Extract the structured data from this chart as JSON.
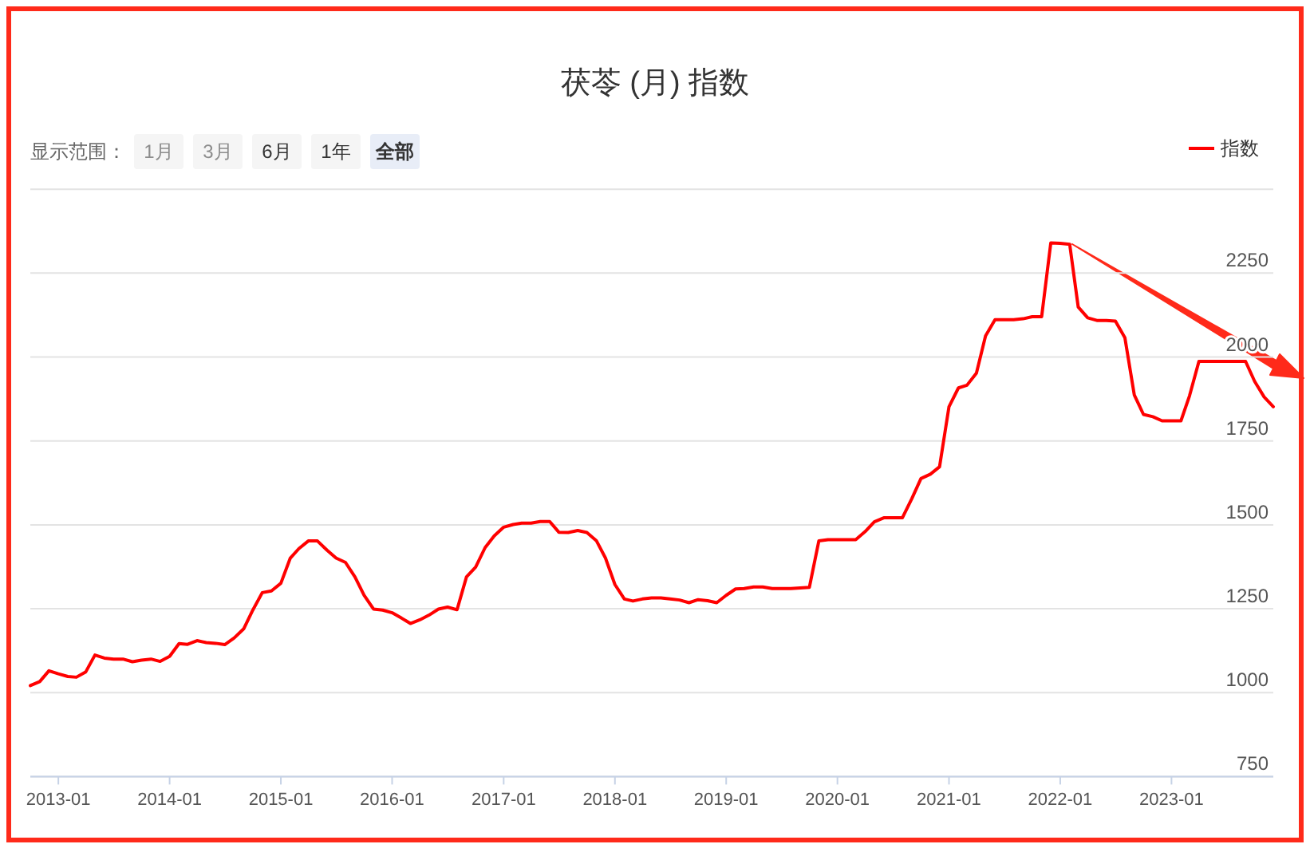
{
  "chart_data": {
    "type": "line",
    "title": "茯苓 (月) 指数",
    "annotations": [
      "显示范围：",
      "1月",
      "3月",
      "6月",
      "1年",
      "全部"
    ],
    "x": [
      "2012-10",
      "2012-11",
      "2012-12",
      "2013-01",
      "2013-02",
      "2013-03",
      "2013-04",
      "2013-05",
      "2013-06",
      "2013-07",
      "2013-08",
      "2013-09",
      "2013-10",
      "2013-11",
      "2013-12",
      "2014-01",
      "2014-02",
      "2014-03",
      "2014-04",
      "2014-05",
      "2014-06",
      "2014-07",
      "2014-08",
      "2014-09",
      "2014-10",
      "2014-11",
      "2014-12",
      "2015-01",
      "2015-02",
      "2015-03",
      "2015-04",
      "2015-05",
      "2015-06",
      "2015-07",
      "2015-08",
      "2015-09",
      "2015-10",
      "2015-11",
      "2015-12",
      "2016-01",
      "2016-02",
      "2016-03",
      "2016-04",
      "2016-05",
      "2016-06",
      "2016-07",
      "2016-08",
      "2016-09",
      "2016-10",
      "2016-11",
      "2016-12",
      "2017-01",
      "2017-02",
      "2017-03",
      "2017-04",
      "2017-05",
      "2017-06",
      "2017-07",
      "2017-08",
      "2017-09",
      "2017-10",
      "2017-11",
      "2017-12",
      "2018-01",
      "2018-02",
      "2018-03",
      "2018-04",
      "2018-05",
      "2018-06",
      "2018-07",
      "2018-08",
      "2018-09",
      "2018-10",
      "2018-11",
      "2018-12",
      "2019-01",
      "2019-02",
      "2019-03",
      "2019-04",
      "2019-05",
      "2019-06",
      "2019-07",
      "2019-08",
      "2019-09",
      "2019-10",
      "2019-11",
      "2019-12",
      "2020-01",
      "2020-02",
      "2020-03",
      "2020-04",
      "2020-05",
      "2020-06",
      "2020-07",
      "2020-08",
      "2020-09",
      "2020-10",
      "2020-11",
      "2020-12",
      "2021-01",
      "2021-02",
      "2021-03",
      "2021-04",
      "2021-05",
      "2021-06",
      "2021-07",
      "2021-08",
      "2021-09",
      "2021-10",
      "2021-11",
      "2021-12",
      "2022-01",
      "2022-02",
      "2022-03",
      "2022-04",
      "2022-05",
      "2022-06",
      "2022-07",
      "2022-08",
      "2022-09",
      "2022-10",
      "2022-11",
      "2022-12",
      "2023-01",
      "2023-02",
      "2023-03",
      "2023-04",
      "2023-05",
      "2023-06",
      "2023-07",
      "2023-08",
      "2023-09",
      "2023-10",
      "2023-11",
      "2023-12"
    ],
    "series": [
      {
        "name": "指数",
        "color": "#ff0000",
        "values": [
          1021,
          1033,
          1065,
          1056,
          1048,
          1046,
          1062,
          1112,
          1103,
          1100,
          1100,
          1092,
          1097,
          1100,
          1093,
          1108,
          1146,
          1144,
          1155,
          1149,
          1147,
          1143,
          1163,
          1190,
          1246,
          1298,
          1303,
          1326,
          1401,
          1429,
          1452,
          1452,
          1425,
          1401,
          1388,
          1345,
          1290,
          1249,
          1246,
          1238,
          1222,
          1206,
          1217,
          1231,
          1249,
          1255,
          1247,
          1345,
          1374,
          1432,
          1467,
          1493,
          1501,
          1505,
          1505,
          1510,
          1510,
          1478,
          1477,
          1483,
          1477,
          1453,
          1401,
          1322,
          1279,
          1273,
          1279,
          1282,
          1282,
          1279,
          1276,
          1268,
          1277,
          1274,
          1268,
          1290,
          1309,
          1310,
          1315,
          1315,
          1310,
          1310,
          1310,
          1312,
          1314,
          1452,
          1456,
          1456,
          1456,
          1456,
          1480,
          1509,
          1521,
          1521,
          1521,
          1578,
          1638,
          1651,
          1673,
          1852,
          1908,
          1916,
          1952,
          2063,
          2111,
          2111,
          2111,
          2114,
          2120,
          2120,
          2340,
          2339,
          2336,
          2149,
          2117,
          2109,
          2109,
          2107,
          2058,
          1887,
          1829,
          1822,
          1810,
          1810,
          1810,
          1884,
          1987,
          1987,
          1987,
          1987,
          1987,
          1987,
          1927,
          1881,
          1852
        ]
      }
    ],
    "xlim": [
      "2012-10",
      "2023-12"
    ],
    "xticks": [
      "2013-01",
      "2014-01",
      "2015-01",
      "2016-01",
      "2017-01",
      "2018-01",
      "2019-01",
      "2020-01",
      "2021-01",
      "2022-01",
      "2023-01"
    ],
    "ylim": [
      750,
      2500
    ],
    "yticks": [
      750,
      1000,
      1250,
      1500,
      1750,
      2000,
      2250,
      {
        "value": 2500,
        "label": null
      }
    ],
    "grid": "y",
    "legend": "top right",
    "marker": "none",
    "line_style": "solid"
  }
}
